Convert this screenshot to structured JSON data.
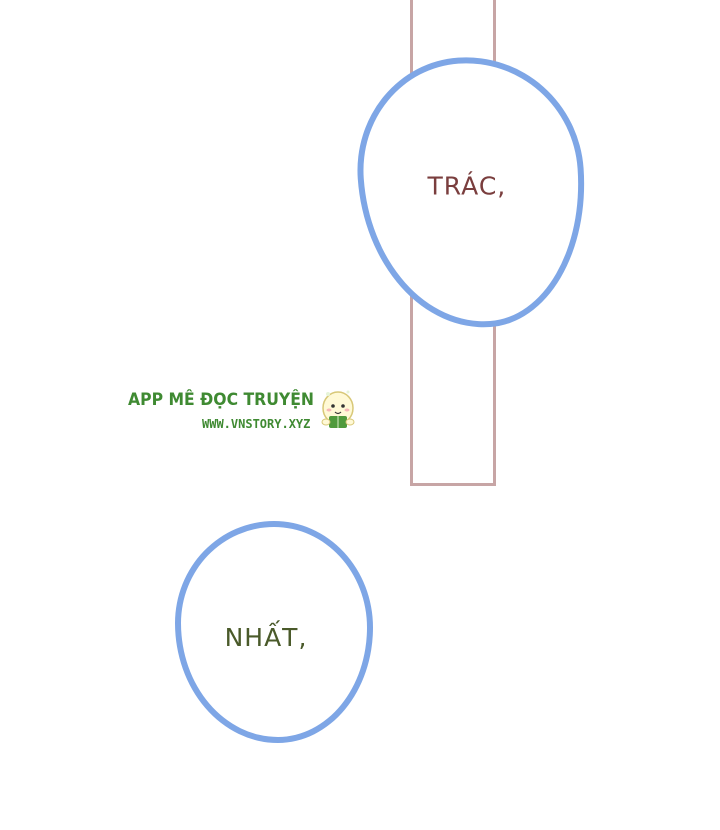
{
  "page": {
    "background": "#ffffff"
  },
  "bubbles": {
    "top": {
      "text": "TRÁC,"
    },
    "bottom": {
      "text": "NHẤT,"
    }
  },
  "watermark": {
    "title": "APP MÊ ĐỌC TRUYỆN",
    "url": "WWW.VNSTORY.XYZ",
    "mascot_icon": "mascot-reading-icon"
  },
  "colors": {
    "bubble_border": "#7ea6e6",
    "panel_border": "#c7a5a5",
    "top_text": "#7a3e3e",
    "bottom_text": "#4a5a2a",
    "watermark": "#3f8a32"
  }
}
